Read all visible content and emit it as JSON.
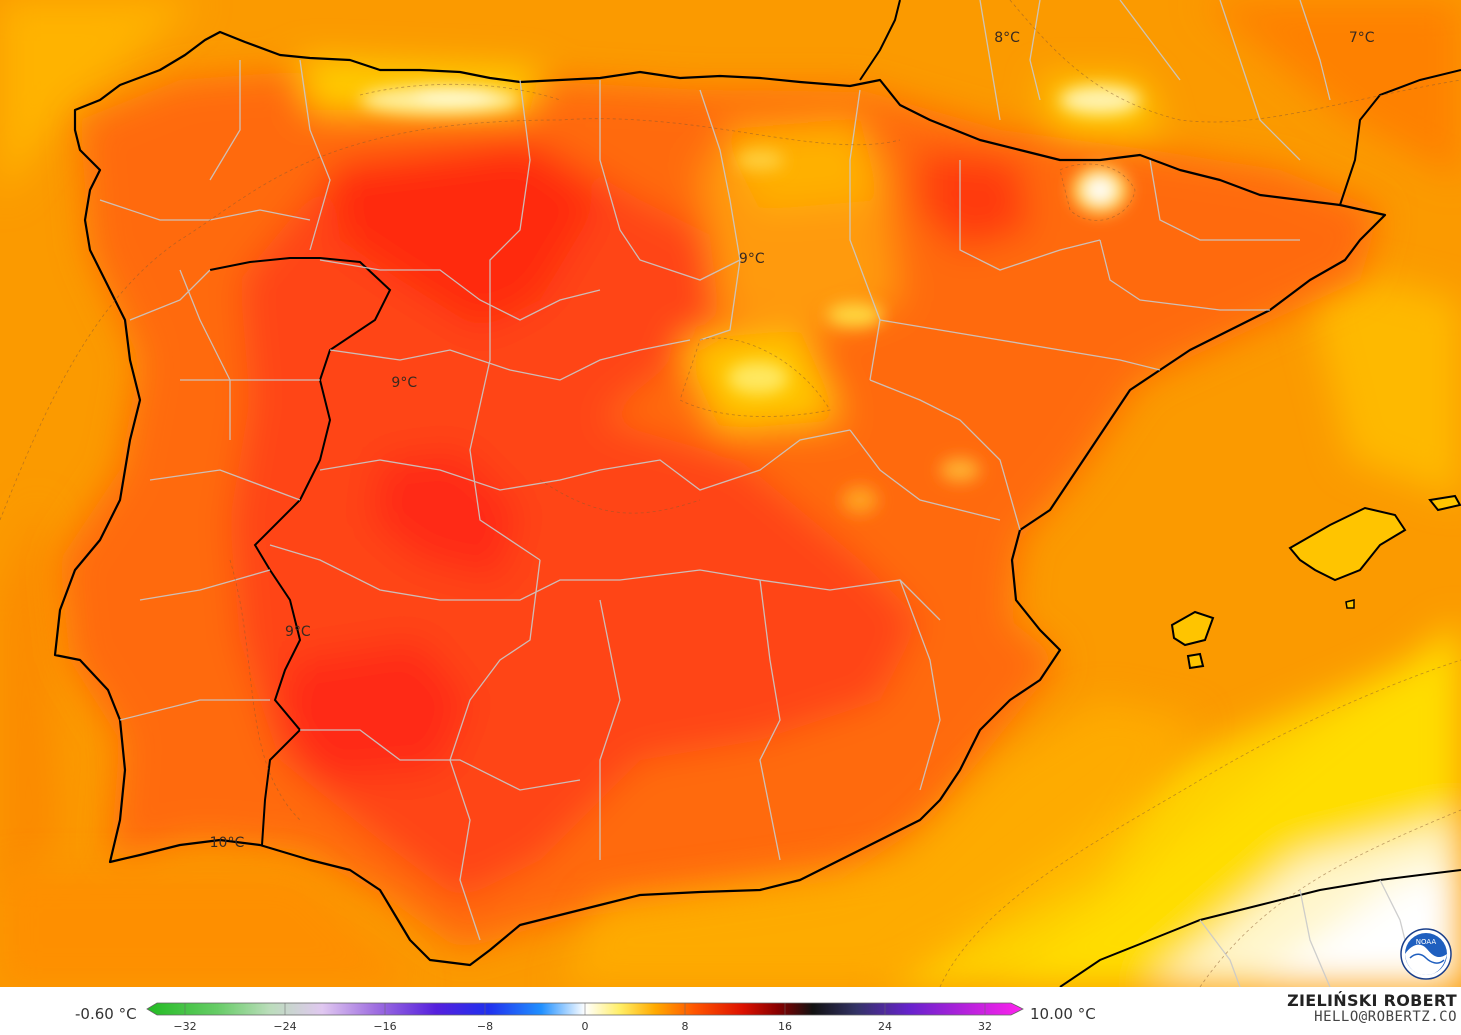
{
  "map": {
    "region": "Iberian Peninsula",
    "labels": [
      {
        "text": "8°C",
        "lon": 4.0,
        "lat": 45.0
      },
      {
        "text": "7°C",
        "lon": 9.0,
        "lat": 45.0
      },
      {
        "text": "9°C",
        "lon": 0.4,
        "lat": 42.7
      },
      {
        "text": "9°C",
        "lon": -4.5,
        "lat": 41.4
      },
      {
        "text": "9°C",
        "lon": -6.0,
        "lat": 38.8
      },
      {
        "text": "10°C",
        "lon": -7.0,
        "lat": 36.6
      }
    ]
  },
  "legend": {
    "min_label": "-0.60 °C",
    "max_label": "10.00 °C",
    "ticks": [
      "−32",
      "−24",
      "−16",
      "−8",
      "0",
      "8",
      "16",
      "24",
      "32"
    ],
    "range": [
      -32,
      32
    ],
    "colors": {
      "cold_start": "#22c022",
      "zero": "#ffffff",
      "warm_8": "#ff4400",
      "hot_16": "#111111",
      "end": "#ff22ee"
    }
  },
  "credit": {
    "author": "ZIELIŃSKI ROBERT",
    "email": "HELLO@ROBERTZ.CO",
    "logo": "noaa-logo",
    "logo_text": "NOAA"
  }
}
